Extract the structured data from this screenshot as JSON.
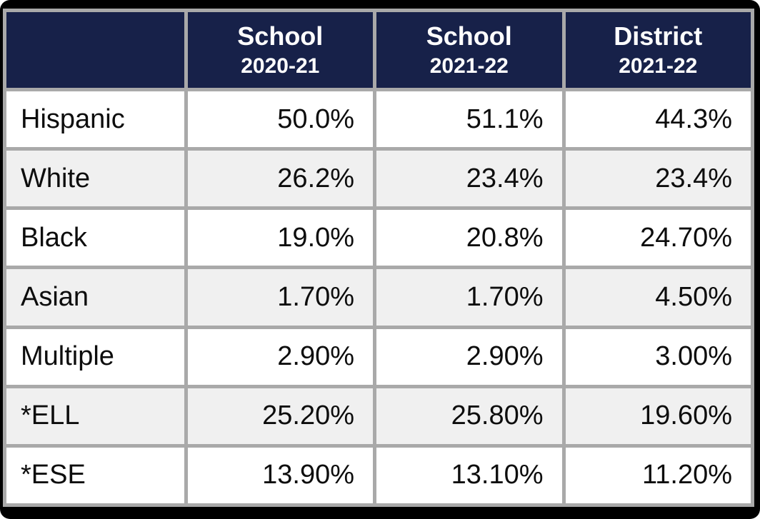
{
  "colors": {
    "header_bg": "#172149",
    "header_text": "#ffffff",
    "grid_border": "#a9a9a9",
    "row_bg": "#ffffff",
    "row_alt_bg": "#f0f0f0",
    "outer_frame": "#000000",
    "body_text": "#0d0d0d"
  },
  "chart_data": {
    "type": "table",
    "column_headers": [
      {
        "line1": "School",
        "line2": "2020-21"
      },
      {
        "line1": "School",
        "line2": "2021-22"
      },
      {
        "line1": "District",
        "line2": "2021-22"
      }
    ],
    "rows": [
      {
        "label": "Hispanic",
        "values": [
          "50.0%",
          "51.1%",
          "44.3%"
        ]
      },
      {
        "label": "White",
        "values": [
          "26.2%",
          "23.4%",
          "23.4%"
        ]
      },
      {
        "label": "Black",
        "values": [
          "19.0%",
          "20.8%",
          "24.70%"
        ]
      },
      {
        "label": "Asian",
        "values": [
          "1.70%",
          "1.70%",
          "4.50%"
        ]
      },
      {
        "label": "Multiple",
        "values": [
          "2.90%",
          "2.90%",
          "3.00%"
        ]
      },
      {
        "label": "*ELL",
        "values": [
          "25.20%",
          "25.80%",
          "19.60%"
        ]
      },
      {
        "label": "*ESE",
        "values": [
          "13.90%",
          "13.10%",
          "11.20%"
        ]
      }
    ]
  }
}
